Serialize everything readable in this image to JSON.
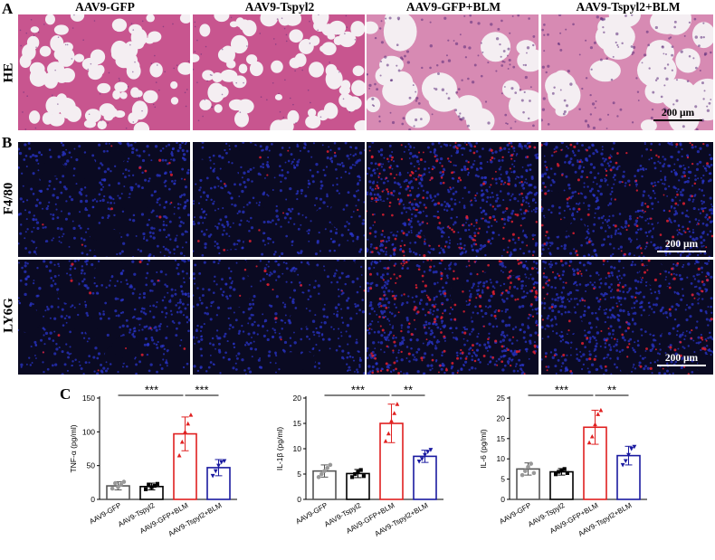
{
  "panels": {
    "A": "A",
    "B": "B",
    "C": "C"
  },
  "columns": [
    "AAV9-GFP",
    "AAV9-Tspyl2",
    "AAV9-GFP+BLM",
    "AAV9-Tspyl2+BLM"
  ],
  "rows": {
    "he": "HE",
    "f480": "F4/80",
    "ly6g": "LY6G"
  },
  "scale_bars": {
    "he": "200 μm",
    "f480": "200 μm",
    "ly6g": "200 μm"
  },
  "colors": {
    "he_background": "#f4eef2",
    "he_stain": "#c8558f",
    "he_nuclei": "#5a2a78",
    "if_background": "#0a0a22",
    "if_blue": "#2a34c8",
    "if_red": "#e02030",
    "bar_gfp": "#555555",
    "bar_tspyl2": "#000000",
    "bar_gfp_blm": "#e02020",
    "bar_tspyl2_blm": "#1a1aa0"
  },
  "chart_data": [
    {
      "type": "bar",
      "ylabel": "TNF-α (pg/ml)",
      "categories": [
        "AAV9-GFP",
        "AAV9-Tspyl2",
        "AAV9-GFP+BLM",
        "AAV9-Tspyl2+BLM"
      ],
      "values": [
        20,
        19,
        97,
        47
      ],
      "errors": [
        6,
        5,
        25,
        12
      ],
      "points": [
        [
          16,
          24,
          18,
          22,
          26
        ],
        [
          15,
          22,
          18,
          20,
          23
        ],
        [
          65,
          85,
          100,
          112,
          125
        ],
        [
          35,
          42,
          50,
          55,
          57
        ]
      ],
      "ylim": [
        0,
        150
      ],
      "yticks": [
        0,
        50,
        100,
        150
      ],
      "significance": [
        {
          "from": 0,
          "to": 2,
          "label": "***"
        },
        {
          "from": 2,
          "to": 3,
          "label": "***"
        }
      ]
    },
    {
      "type": "bar",
      "ylabel": "IL-1β (pg/ml)",
      "categories": [
        "AAV9-GFP",
        "AAV9-Tspyl2",
        "AAV9-GFP+BLM",
        "AAV9-Tspyl2+BLM"
      ],
      "values": [
        5.6,
        5.1,
        15.0,
        8.5
      ],
      "errors": [
        1.2,
        0.8,
        3.8,
        1.2
      ],
      "points": [
        [
          4.4,
          5.0,
          5.6,
          6.2,
          6.8
        ],
        [
          4.4,
          5.0,
          5.4,
          5.8,
          4.6
        ],
        [
          11.5,
          13.0,
          15.5,
          17.0,
          18.8
        ],
        [
          7.5,
          8.0,
          8.8,
          9.4,
          9.8
        ]
      ],
      "ylim": [
        0,
        20
      ],
      "yticks": [
        0,
        5,
        10,
        15,
        20
      ],
      "significance": [
        {
          "from": 0,
          "to": 2,
          "label": "***"
        },
        {
          "from": 2,
          "to": 3,
          "label": "**"
        }
      ]
    },
    {
      "type": "bar",
      "ylabel": "IL-6 (pg/ml)",
      "categories": [
        "AAV9-GFP",
        "AAV9-Tspyl2",
        "AAV9-GFP+BLM",
        "AAV9-Tspyl2+BLM"
      ],
      "values": [
        7.5,
        6.8,
        17.8,
        10.8
      ],
      "errors": [
        1.5,
        0.8,
        4.2,
        2.3
      ],
      "points": [
        [
          6.0,
          7.0,
          8.0,
          8.8,
          6.5
        ],
        [
          6.2,
          6.8,
          7.2,
          7.5,
          6.5
        ],
        [
          14.0,
          15.5,
          18.5,
          21.0,
          22.0
        ],
        [
          8.5,
          9.5,
          11.0,
          12.5,
          13.0
        ]
      ],
      "ylim": [
        0,
        25
      ],
      "yticks": [
        0,
        5,
        10,
        15,
        20,
        25
      ],
      "significance": [
        {
          "from": 0,
          "to": 2,
          "label": "***"
        },
        {
          "from": 2,
          "to": 3,
          "label": "**"
        }
      ]
    }
  ]
}
